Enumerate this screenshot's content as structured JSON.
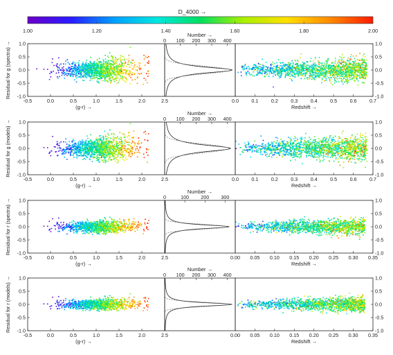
{
  "colorbar": {
    "title": "D_4000 →",
    "range": [
      1.0,
      2.0
    ],
    "ticks": [
      "1.00",
      "1.20",
      "1.40",
      "1.60",
      "1.80",
      "2.00"
    ],
    "colors": [
      "#6a00c8",
      "#2a1cff",
      "#00a0ff",
      "#00e8e0",
      "#00e060",
      "#aaf000",
      "#ffe000",
      "#ff8a00",
      "#ff1a00"
    ]
  },
  "chart_data": [
    {
      "type": "scatter",
      "row": 1,
      "ylabel": "Residual for g (spectra) →",
      "ylim": [
        -1.0,
        1.0
      ],
      "y_ticks": [
        "1.0",
        "0.5",
        "0.0",
        "-0.5",
        "-1.0"
      ],
      "panels": {
        "color": {
          "xlabel": "(g-r) →",
          "xlim": [
            -0.5,
            2.5
          ],
          "x_ticks": [
            "-0.5",
            "0.0",
            "0.5",
            "1.0",
            "1.5",
            "2.0",
            "2.5"
          ],
          "points": 1300,
          "sigma": 0.14,
          "sigma_slope": 0.09
        },
        "histogram": {
          "xlabel": "Number →",
          "xlim": [
            0,
            450
          ],
          "x_ticks": [
            "0",
            "100",
            "200",
            "300",
            "400"
          ],
          "peak": 430,
          "width": 0.14
        },
        "redshift": {
          "xlabel": "Redshift →",
          "xlim": [
            0.0,
            0.7
          ],
          "x_ticks": [
            "0.0",
            "0.1",
            "0.2",
            "0.3",
            "0.4",
            "0.5",
            "0.6",
            "0.7"
          ],
          "zmax": 0.67,
          "points": 1600
        }
      }
    },
    {
      "type": "scatter",
      "row": 2,
      "ylabel": "Residual for g (models) →",
      "ylim": [
        -1.0,
        1.0
      ],
      "y_ticks": [
        "1.0",
        "0.5",
        "0.0",
        "-0.5",
        "-1.0"
      ],
      "panels": {
        "color": {
          "xlabel": "(g-r) →",
          "xlim": [
            -0.5,
            2.5
          ],
          "x_ticks": [
            "-0.5",
            "0.0",
            "0.5",
            "1.0",
            "1.5",
            "2.0",
            "2.5"
          ],
          "points": 1300,
          "sigma": 0.15,
          "sigma_slope": 0.1
        },
        "histogram": {
          "xlabel": "Number →",
          "xlim": [
            0,
            450
          ],
          "x_ticks": [
            "0",
            "100",
            "200",
            "300",
            "400"
          ],
          "peak": 420,
          "width": 0.16
        },
        "redshift": {
          "xlabel": "Redshift →",
          "xlim": [
            0.0,
            0.7
          ],
          "x_ticks": [
            "0.0",
            "0.1",
            "0.2",
            "0.3",
            "0.4",
            "0.5",
            "0.6",
            "0.7"
          ],
          "zmax": 0.67,
          "points": 1600
        }
      }
    },
    {
      "type": "scatter",
      "row": 3,
      "ylabel": "Residual for r (spectra) →",
      "ylim": [
        -1.0,
        1.0
      ],
      "y_ticks": [
        "1.0",
        "0.5",
        "0.0",
        "-0.5",
        "-1.0"
      ],
      "panels": {
        "color": {
          "xlabel": "(g-r) →",
          "xlim": [
            -0.5,
            2.5
          ],
          "x_ticks": [
            "-0.5",
            "0.0",
            "0.5",
            "1.0",
            "1.5",
            "2.0",
            "2.5"
          ],
          "points": 1100,
          "sigma": 0.1,
          "sigma_slope": 0.02
        },
        "histogram": {
          "xlabel": "Number →",
          "xlim": [
            0,
            350
          ],
          "x_ticks": [
            "0",
            "100",
            "200",
            "300"
          ],
          "peak": 320,
          "width": 0.09
        },
        "redshift": {
          "xlabel": "Redshift →",
          "xlim": [
            0.0,
            0.35
          ],
          "x_ticks": [
            "0.00",
            "0.05",
            "0.10",
            "0.15",
            "0.20",
            "0.25",
            "0.30",
            "0.35"
          ],
          "zmax": 0.33,
          "points": 1400
        }
      }
    },
    {
      "type": "scatter",
      "row": 4,
      "ylabel": "Residual for r (models) →",
      "ylim": [
        -1.0,
        1.0
      ],
      "y_ticks": [
        "1.0",
        "0.5",
        "0.0",
        "-0.5",
        "-1.0"
      ],
      "panels": {
        "color": {
          "xlabel": "(g-r) →",
          "xlim": [
            -0.5,
            2.5
          ],
          "x_ticks": [
            "-0.5",
            "0.0",
            "0.5",
            "1.0",
            "1.5",
            "2.0",
            "2.5"
          ],
          "points": 1100,
          "sigma": 0.09,
          "sigma_slope": 0.02
        },
        "histogram": {
          "xlabel": "Number →",
          "xlim": [
            0,
            450
          ],
          "x_ticks": [
            "0",
            "100",
            "200",
            "300",
            "400"
          ],
          "peak": 430,
          "width": 0.08
        },
        "redshift": {
          "xlabel": "Redshift →",
          "xlim": [
            0.0,
            0.35
          ],
          "x_ticks": [
            "0.00",
            "0.05",
            "0.10",
            "0.15",
            "0.20",
            "0.25",
            "0.30",
            "0.35"
          ],
          "zmax": 0.33,
          "points": 1400
        }
      }
    }
  ]
}
